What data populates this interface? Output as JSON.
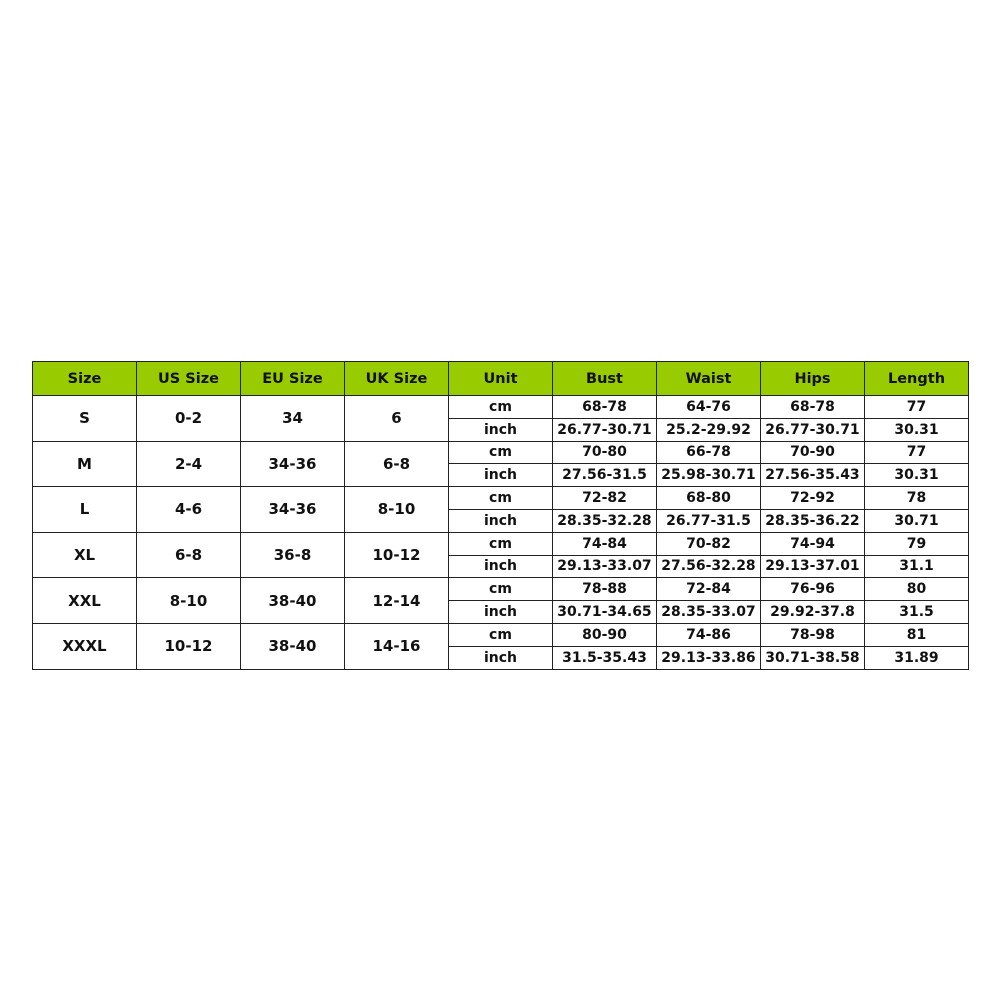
{
  "header_color": "#99cc00",
  "columns": [
    "Size",
    "US Size",
    "EU Size",
    "UK Size",
    "Unit",
    "Bust",
    "Waist",
    "Hips",
    "Length"
  ],
  "rows": [
    {
      "size": "S",
      "us": "0-2",
      "eu": "34",
      "uk": "6",
      "cm": {
        "unit": "cm",
        "bust": "68-78",
        "waist": "64-76",
        "hips": "68-78",
        "length": "77"
      },
      "inch": {
        "unit": "inch",
        "bust": "26.77-30.71",
        "waist": "25.2-29.92",
        "hips": "26.77-30.71",
        "length": "30.31"
      }
    },
    {
      "size": "M",
      "us": "2-4",
      "eu": "34-36",
      "uk": "6-8",
      "cm": {
        "unit": "cm",
        "bust": "70-80",
        "waist": "66-78",
        "hips": "70-90",
        "length": "77"
      },
      "inch": {
        "unit": "inch",
        "bust": "27.56-31.5",
        "waist": "25.98-30.71",
        "hips": "27.56-35.43",
        "length": "30.31"
      }
    },
    {
      "size": "L",
      "us": "4-6",
      "eu": "34-36",
      "uk": "8-10",
      "cm": {
        "unit": "cm",
        "bust": "72-82",
        "waist": "68-80",
        "hips": "72-92",
        "length": "78"
      },
      "inch": {
        "unit": "inch",
        "bust": "28.35-32.28",
        "waist": "26.77-31.5",
        "hips": "28.35-36.22",
        "length": "30.71"
      }
    },
    {
      "size": "XL",
      "us": "6-8",
      "eu": "36-8",
      "uk": "10-12",
      "cm": {
        "unit": "cm",
        "bust": "74-84",
        "waist": "70-82",
        "hips": "74-94",
        "length": "79"
      },
      "inch": {
        "unit": "inch",
        "bust": "29.13-33.07",
        "waist": "27.56-32.28",
        "hips": "29.13-37.01",
        "length": "31.1"
      }
    },
    {
      "size": "XXL",
      "us": "8-10",
      "eu": "38-40",
      "uk": "12-14",
      "cm": {
        "unit": "cm",
        "bust": "78-88",
        "waist": "72-84",
        "hips": "76-96",
        "length": "80"
      },
      "inch": {
        "unit": "inch",
        "bust": "30.71-34.65",
        "waist": "28.35-33.07",
        "hips": "29.92-37.8",
        "length": "31.5"
      }
    },
    {
      "size": "XXXL",
      "us": "10-12",
      "eu": "38-40",
      "uk": "14-16",
      "cm": {
        "unit": "cm",
        "bust": "80-90",
        "waist": "74-86",
        "hips": "78-98",
        "length": "81"
      },
      "inch": {
        "unit": "inch",
        "bust": "31.5-35.43",
        "waist": "29.13-33.86",
        "hips": "30.71-38.58",
        "length": "31.89"
      }
    }
  ]
}
